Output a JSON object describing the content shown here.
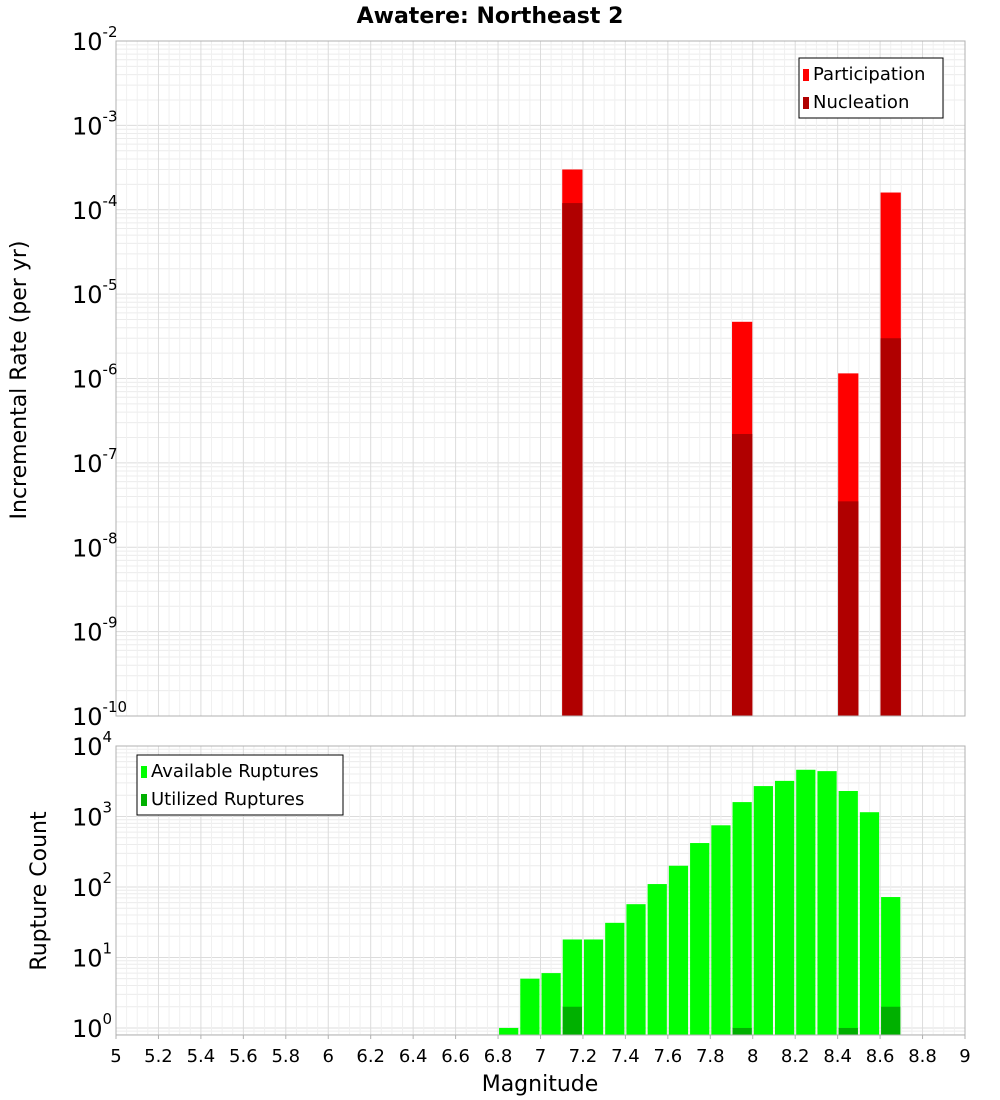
{
  "chart_data": [
    {
      "type": "bar",
      "title": "Awatere: Northeast 2",
      "ylabel": "Incremental Rate (per yr)",
      "xlabel": "",
      "yscale": "log",
      "ylim_exp": [
        -10,
        -2
      ],
      "xlim": [
        5,
        9
      ],
      "legend_position": "top-right",
      "series": [
        {
          "name": "Participation",
          "color": "#ff0000",
          "x": [
            7.15,
            7.95,
            8.45,
            8.65
          ],
          "values": [
            0.0003,
            4.7e-06,
            1.15e-06,
            0.00016
          ]
        },
        {
          "name": "Nucleation",
          "color": "#b00000",
          "x": [
            7.15,
            7.95,
            8.45,
            8.65
          ],
          "values": [
            0.00012,
            2.2e-07,
            3.5e-08,
            3e-06
          ]
        }
      ]
    },
    {
      "type": "bar",
      "title": "",
      "ylabel": "Rupture Count",
      "xlabel": "Magnitude",
      "yscale": "log",
      "ylim_exp": [
        -0.1,
        4
      ],
      "xlim": [
        5,
        9
      ],
      "x_ticks": [
        "5",
        "5.2",
        "5.4",
        "5.6",
        "5.8",
        "6",
        "6.2",
        "6.4",
        "6.6",
        "6.8",
        "7",
        "7.2",
        "7.4",
        "7.6",
        "7.8",
        "8",
        "8.2",
        "8.4",
        "8.6",
        "8.8",
        "9"
      ],
      "legend_position": "top-left",
      "series": [
        {
          "name": "Available Ruptures",
          "color": "#00ff00",
          "x": [
            6.85,
            6.95,
            7.05,
            7.15,
            7.25,
            7.35,
            7.45,
            7.55,
            7.65,
            7.75,
            7.85,
            7.95,
            8.05,
            8.15,
            8.25,
            8.35,
            8.45,
            8.55,
            8.65
          ],
          "values": [
            1,
            5,
            6,
            18,
            18,
            31,
            57,
            110,
            200,
            420,
            750,
            1600,
            2700,
            3200,
            4600,
            4400,
            2300,
            1150,
            72
          ]
        },
        {
          "name": "Utilized Ruptures",
          "color": "#00b000",
          "x": [
            7.15,
            7.95,
            8.45,
            8.65
          ],
          "values": [
            2,
            1,
            1,
            2
          ]
        }
      ]
    }
  ]
}
